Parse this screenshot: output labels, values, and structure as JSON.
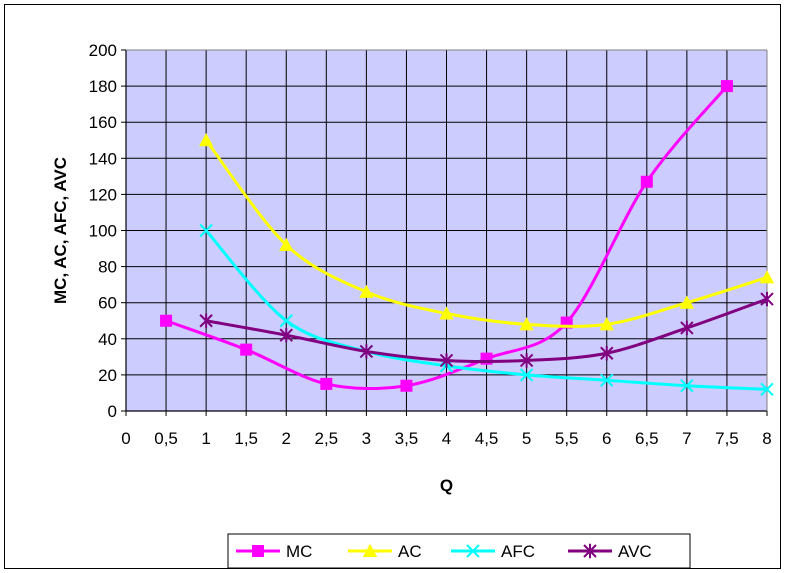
{
  "chart_data": {
    "type": "line",
    "xlabel": "Q",
    "ylabel": "MC, AC, AFC, AVC",
    "xlim": [
      0,
      8
    ],
    "ylim": [
      0,
      200
    ],
    "x_ticks": [
      "0",
      "0,5",
      "1",
      "1,5",
      "2",
      "2,5",
      "3",
      "3,5",
      "4",
      "4,5",
      "5",
      "5,5",
      "6",
      "6,5",
      "7",
      "7,5",
      "8"
    ],
    "y_ticks": [
      "0",
      "20",
      "40",
      "60",
      "80",
      "100",
      "120",
      "140",
      "160",
      "180",
      "200"
    ],
    "grid": true,
    "legend_position": "bottom",
    "series": [
      {
        "name": "MC",
        "color": "#ff00ff",
        "marker": "square",
        "x": [
          0.5,
          1.5,
          2.5,
          3.5,
          4.5,
          5.5,
          6.5,
          7.5
        ],
        "y": [
          50,
          34,
          15,
          14,
          29,
          49,
          127,
          180
        ]
      },
      {
        "name": "AC",
        "color": "#ffff00",
        "marker": "triangle",
        "x": [
          1,
          2,
          3,
          4,
          5,
          6,
          7,
          8
        ],
        "y": [
          150,
          92,
          66,
          54,
          48,
          48,
          60,
          74
        ]
      },
      {
        "name": "AFC",
        "color": "#00ffff",
        "marker": "x",
        "x": [
          1,
          2,
          3,
          4,
          5,
          6,
          7,
          8
        ],
        "y": [
          100,
          50,
          33,
          25,
          20,
          17,
          14,
          12
        ]
      },
      {
        "name": "AVC",
        "color": "#800080",
        "marker": "star",
        "x": [
          1,
          2,
          3,
          4,
          5,
          6,
          7,
          8
        ],
        "y": [
          50,
          42,
          33,
          28,
          28,
          32,
          46,
          62
        ]
      }
    ],
    "plot_bg": "#ccccff"
  }
}
